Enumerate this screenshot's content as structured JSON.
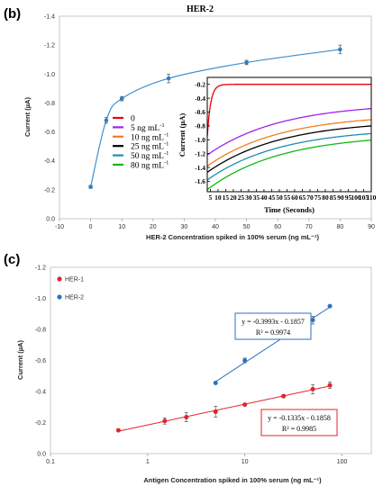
{
  "chart_data": [
    {
      "type": "scatter",
      "panel_label": "(b)",
      "title": "HER-2",
      "xlabel": "HER-2 Concentration spiked in 100% serum (ng mL⁻¹)",
      "ylabel": "Current (µA)",
      "xlim": [
        -10,
        90
      ],
      "ylim": [
        0,
        -1.4
      ],
      "x_ticks": [
        "-10",
        "0",
        "10",
        "20",
        "30",
        "40",
        "50",
        "60",
        "70",
        "80",
        "90"
      ],
      "y_ticks": [
        "0.0",
        "-0.2",
        "-0.4",
        "-0.6",
        "-0.8",
        "-1.0",
        "-1.2",
        "-1.4"
      ],
      "series": [
        {
          "x": [
            0,
            5,
            10,
            25,
            50,
            80
          ],
          "y": [
            -0.22,
            -0.68,
            -0.83,
            -0.97,
            -1.08,
            -1.17
          ],
          "errors": [
            0.01,
            0.02,
            0.015,
            0.03,
            0.015,
            0.03
          ],
          "color": "#2e7fc0"
        }
      ],
      "inset": {
        "type": "line",
        "xlabel": "Time (Seconds)",
        "ylabel": "Current (µA)",
        "xlim": [
          3,
          110
        ],
        "ylim": [
          -1.75,
          -0.1
        ],
        "x_ticks": [
          "5",
          "10",
          "15",
          "20",
          "25",
          "30",
          "35",
          "40",
          "45",
          "50",
          "55",
          "60",
          "65",
          "70",
          "75",
          "80",
          "85",
          "90",
          "95",
          "100",
          "105",
          "110"
        ],
        "y_ticks": [
          "-0.2",
          "-0.4",
          "-0.6",
          "-0.8",
          "-1.0",
          "-1.2",
          "-1.4",
          "-1.6"
        ],
        "legend": {
          "labels": [
            "0",
            "5 ng mL",
            "10 ng mL",
            "25 ng mL",
            "50 ng mL",
            "80 ng mL"
          ],
          "superscript": "-1",
          "placement": "left of inset"
        },
        "series": [
          {
            "color": "#e8000b",
            "end": -0.2,
            "start": -0.95
          },
          {
            "color": "#a020f0",
            "end": -0.47,
            "start": -1.22
          },
          {
            "color": "#f07f1c",
            "end": -0.63,
            "start": -1.38
          },
          {
            "color": "#000000",
            "end": -0.72,
            "start": -1.47
          },
          {
            "color": "#1a8fb0",
            "end": -0.83,
            "start": -1.58
          },
          {
            "color": "#12b812",
            "end": -0.92,
            "start": -1.72
          }
        ]
      }
    },
    {
      "type": "scatter",
      "panel_label": "(c)",
      "xlabel": "Antigen Concentration spiked in 100% serum (ng mL⁻¹)",
      "ylabel": "Current (µA)",
      "x_scale": "log",
      "xlim": [
        0.1,
        200
      ],
      "ylim": [
        0,
        -1.2
      ],
      "x_ticks": [
        "0.1",
        "1",
        "10",
        "100"
      ],
      "y_ticks": [
        "0.0",
        "-0.2",
        "-0.4",
        "-0.6",
        "-0.8",
        "-1.0",
        "-1.2"
      ],
      "legend": {
        "placement": "top-left"
      },
      "series": [
        {
          "name": "HER-1",
          "color": "#e0242b",
          "x": [
            0.5,
            1.5,
            2.5,
            5,
            10,
            25,
            50,
            75
          ],
          "y": [
            -0.15,
            -0.21,
            -0.235,
            -0.27,
            -0.315,
            -0.37,
            -0.415,
            -0.44
          ],
          "errors": [
            0.005,
            0.02,
            0.03,
            0.035,
            0.005,
            0.01,
            0.03,
            0.02
          ],
          "fit": {
            "equation": "y = -0.1335x - 0.1858",
            "r2": "R² = 0.9985"
          }
        },
        {
          "name": "HER-2",
          "color": "#2e72c0",
          "x": [
            5,
            10,
            25,
            50,
            75
          ],
          "y": [
            -0.455,
            -0.6,
            -0.75,
            -0.86,
            -0.95
          ],
          "errors": [
            0.005,
            0.015,
            0.005,
            0.025,
            0.005
          ],
          "fit": {
            "equation": "y = -0.3993x - 0.1857",
            "r2": "R² = 0.9974"
          }
        }
      ]
    }
  ]
}
